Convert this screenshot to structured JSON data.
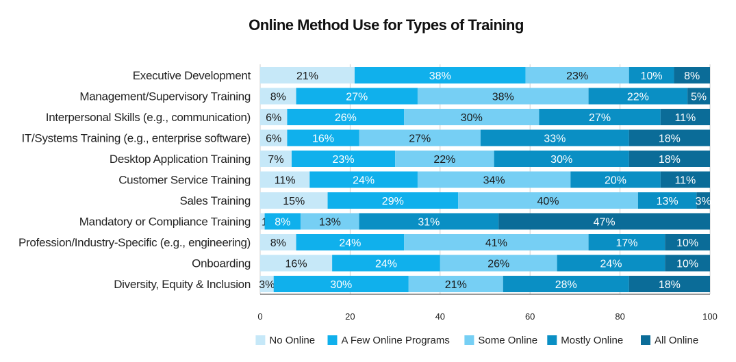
{
  "chart_data": {
    "type": "bar",
    "orientation": "horizontal",
    "stacked": true,
    "title": "Online Method Use for Types of Training",
    "categories": [
      "Executive Development",
      "Management/Supervisory Training",
      "Interpersonal Skills (e.g., communication)",
      "IT/Systems Training (e.g., enterprise software)",
      "Desktop Application Training",
      "Customer Service Training",
      "Sales Training",
      "Mandatory or Compliance Training",
      "Profession/Industry-Specific (e.g., engineering)",
      "Onboarding",
      "Diversity, Equity & Inclusion"
    ],
    "series": [
      {
        "name": "No Online",
        "color": "#c6e8f8",
        "text_color": "#1a1a1a",
        "values": [
          21,
          8,
          6,
          6,
          7,
          11,
          15,
          1,
          8,
          16,
          3
        ]
      },
      {
        "name": "A Few Online Programs",
        "color": "#10b0ec",
        "text_color": "#ffffff",
        "values": [
          38,
          27,
          26,
          16,
          23,
          24,
          29,
          8,
          24,
          24,
          30
        ]
      },
      {
        "name": "Some Online",
        "color": "#76cff4",
        "text_color": "#1a1a1a",
        "values": [
          23,
          38,
          30,
          27,
          22,
          34,
          40,
          13,
          41,
          26,
          21
        ]
      },
      {
        "name": "Mostly Online",
        "color": "#0a8fc4",
        "text_color": "#ffffff",
        "values": [
          10,
          22,
          27,
          33,
          30,
          20,
          13,
          31,
          17,
          24,
          28
        ]
      },
      {
        "name": "All Online",
        "color": "#0b6c98",
        "text_color": "#ffffff",
        "values": [
          8,
          5,
          11,
          18,
          18,
          11,
          3,
          47,
          10,
          10,
          18
        ]
      }
    ],
    "xlim": [
      0,
      100
    ],
    "xticks": [
      0,
      20,
      40,
      60,
      80,
      100
    ],
    "value_suffix": "%",
    "grid": true,
    "legend_position": "bottom-right"
  }
}
